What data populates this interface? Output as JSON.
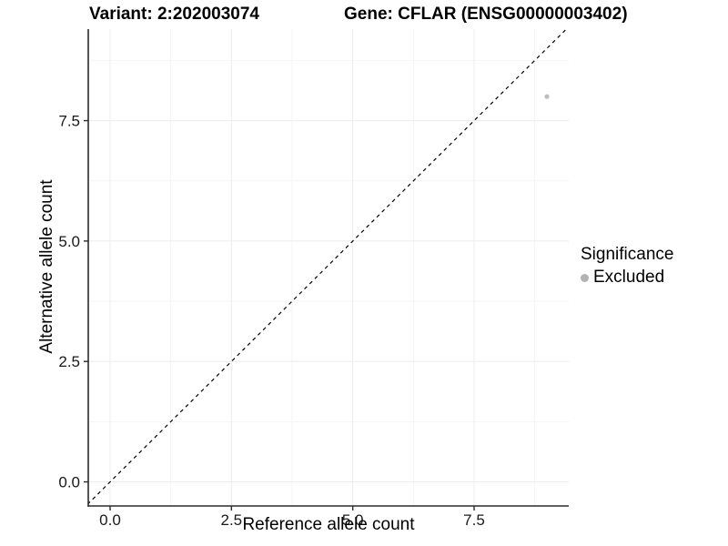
{
  "figure": {
    "title_variant": "Variant: 2:202003074",
    "title_gene": "Gene: CFLAR (ENSG00000003402)"
  },
  "legend": {
    "title": "Significance",
    "items": [
      {
        "label": "Excluded",
        "color": "#b3b3b3"
      }
    ]
  },
  "chart_data": {
    "type": "scatter",
    "title": "Variant: 2:202003074",
    "subtitle": "Gene: CFLAR (ENSG00000003402)",
    "xlabel": "Reference allele count",
    "ylabel": "Alternative allele count",
    "xlim": [
      -0.45,
      9.45
    ],
    "ylim": [
      -0.5,
      9.4
    ],
    "x_ticks": [
      0,
      2.5,
      5.0,
      7.5
    ],
    "x_tick_labels": [
      "0.0",
      "2.5",
      "5.0",
      "7.5"
    ],
    "y_ticks": [
      0,
      2.5,
      5.0,
      7.5
    ],
    "y_tick_labels": [
      "0.0",
      "2.5",
      "5.0",
      "7.5"
    ],
    "x_minor_ticks": [
      1.25,
      3.75,
      6.25,
      8.75
    ],
    "y_minor_ticks": [
      1.25,
      3.75,
      6.25,
      8.75
    ],
    "grid": true,
    "legend_position": "right",
    "series": [
      {
        "name": "Excluded",
        "color": "#bdbdbd",
        "points": [
          {
            "x": 9,
            "y": 8
          }
        ]
      }
    ],
    "reference_line": {
      "slope": 1,
      "intercept": 0,
      "style": "dashed",
      "color": "#000000"
    }
  },
  "colors": {
    "background": "#ffffff",
    "axis_line": "#2b2b2b",
    "grid_major": "#ececec",
    "grid_minor": "#f5f5f5",
    "tick_label": "#191919",
    "point": "#bdbdbd"
  }
}
